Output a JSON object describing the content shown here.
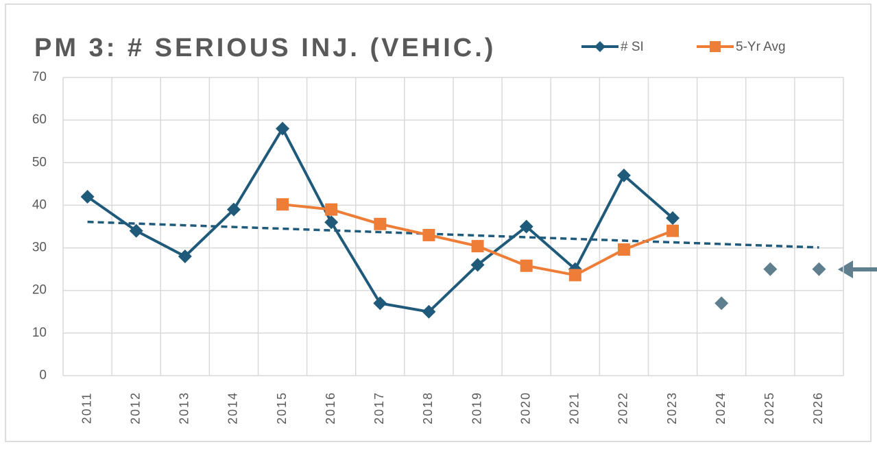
{
  "chart_data": {
    "type": "line",
    "title": "PM 3: # SERIOUS INJ. (VEHIC.)",
    "categories": [
      "2011",
      "2012",
      "2013",
      "2014",
      "2015",
      "2016",
      "2017",
      "2018",
      "2019",
      "2020",
      "2021",
      "2022",
      "2023",
      "2024",
      "2025",
      "2026"
    ],
    "series": [
      {
        "name": "# SI",
        "color": "#1f5a7a",
        "marker": "diamond",
        "line": true,
        "values": [
          42,
          34,
          28,
          39,
          58,
          36,
          17,
          15,
          26,
          35,
          25,
          47,
          37,
          null,
          null,
          null
        ]
      },
      {
        "name": "5-Yr Avg",
        "color": "#ee7d37",
        "marker": "square",
        "line": true,
        "values": [
          null,
          null,
          null,
          null,
          40.2,
          39,
          35.6,
          33,
          30.4,
          25.8,
          23.6,
          29.6,
          34,
          null,
          null,
          null
        ]
      },
      {
        "color": "#5f7f8e",
        "marker": "diamond",
        "line": false,
        "values": [
          null,
          null,
          null,
          null,
          null,
          null,
          null,
          null,
          null,
          null,
          null,
          null,
          null,
          17,
          25,
          25
        ]
      }
    ],
    "trendline": {
      "color": "#1f5a7a",
      "start": 36.1,
      "end": 30.1
    },
    "ylim": [
      0,
      70
    ],
    "yticks": [
      0,
      10,
      20,
      30,
      40,
      50,
      60,
      70
    ],
    "grid": true,
    "legend": "top-right"
  }
}
